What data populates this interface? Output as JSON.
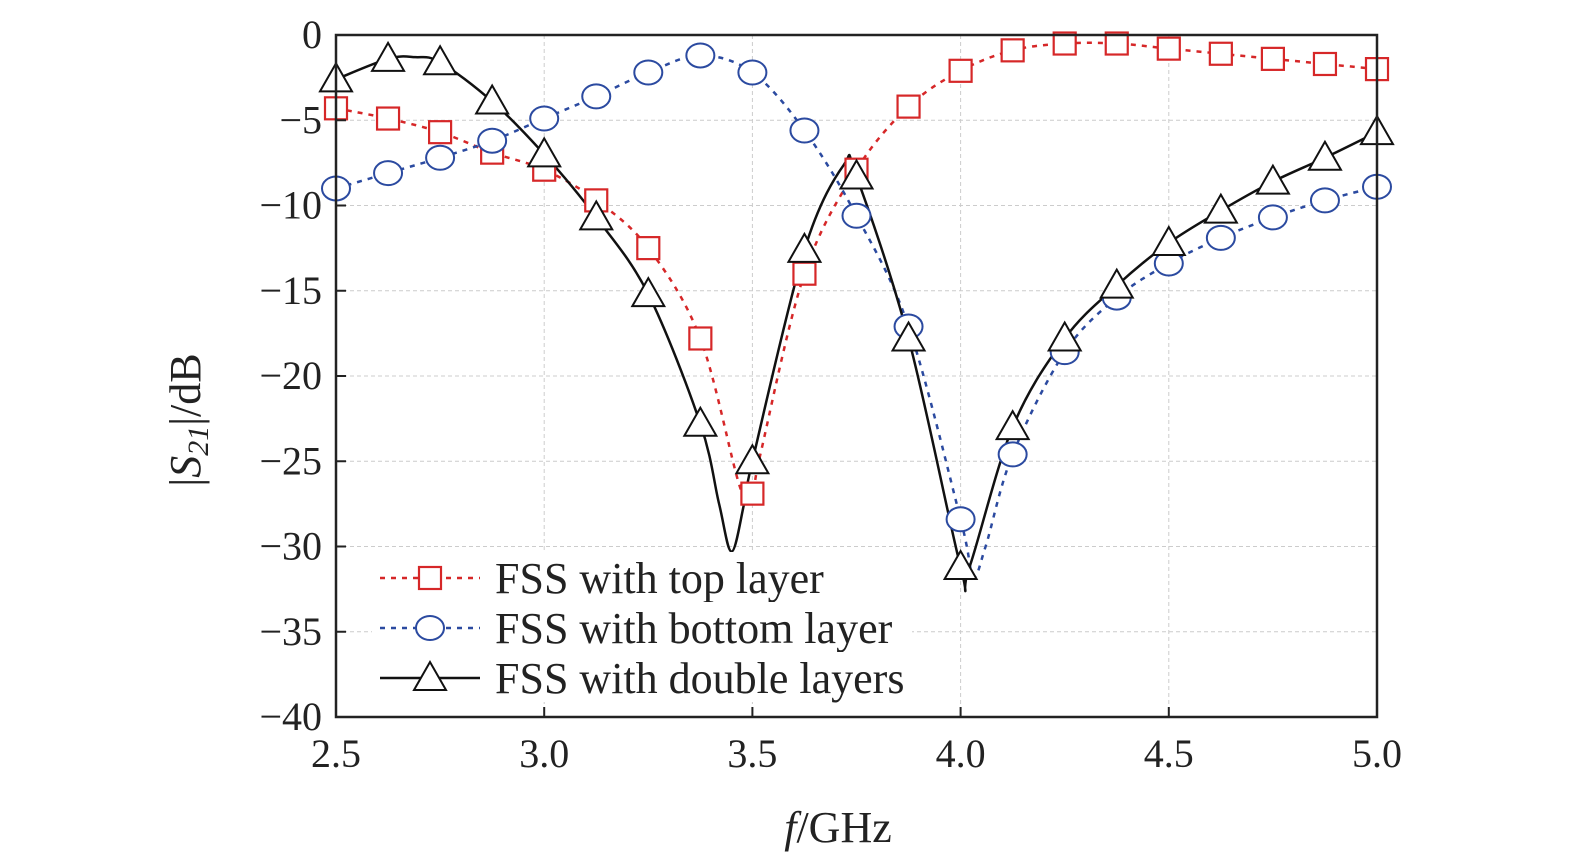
{
  "chart_data": {
    "type": "line",
    "title": "",
    "xlabel": {
      "italic": "f",
      "rest": "/GHz"
    },
    "ylabel": {
      "pre": "|",
      "italic": "S",
      "sub": "21",
      "post": "|/dB"
    },
    "xlim": [
      2.5,
      5.0
    ],
    "ylim": [
      -40,
      0
    ],
    "xticks": [
      "2.5",
      "3.0",
      "3.5",
      "4.0",
      "4.5",
      "5.0"
    ],
    "yticks": [
      "0",
      "−5",
      "−10",
      "−15",
      "−20",
      "−25",
      "−30",
      "−35",
      "−40"
    ],
    "grid": true,
    "legend_position": "bottom-left",
    "x": [
      2.5,
      2.625,
      2.75,
      2.875,
      3.0,
      3.125,
      3.25,
      3.375,
      3.5,
      3.625,
      3.75,
      3.875,
      4.0,
      4.125,
      4.25,
      4.375,
      4.5,
      4.625,
      4.75,
      4.875,
      5.0
    ],
    "series": [
      {
        "name": "FSS with top layer",
        "color": "#d62728",
        "marker": "square",
        "dash": "dotted",
        "values": [
          -4.3,
          -4.9,
          -5.7,
          -6.9,
          -7.9,
          -9.7,
          -12.5,
          -17.8,
          -26.9,
          -14.0,
          -7.9,
          -4.2,
          -2.1,
          -0.9,
          -0.5,
          -0.5,
          -0.8,
          -1.1,
          -1.4,
          -1.7,
          -2.0
        ],
        "curve_extra": [
          [
            3.47,
            -26.5
          ],
          [
            3.52,
            -24.5
          ]
        ]
      },
      {
        "name": "FSS with bottom layer",
        "color": "#2b4aa0",
        "marker": "circle",
        "dash": "dotted",
        "values": [
          -9.0,
          -8.1,
          -7.2,
          -6.2,
          -4.9,
          -3.6,
          -2.2,
          -1.2,
          -2.2,
          -5.6,
          -10.6,
          -17.1,
          -28.4,
          -24.6,
          -18.6,
          -15.4,
          -13.4,
          -11.9,
          -10.7,
          -9.7,
          -8.9
        ],
        "curve_extra": [
          [
            4.03,
            -31.7
          ],
          [
            4.06,
            -30.0
          ]
        ]
      },
      {
        "name": "FSS with double layers",
        "color": "#111111",
        "marker": "triangle",
        "dash": "solid",
        "values": [
          -2.6,
          -1.4,
          -1.6,
          -3.9,
          -7.0,
          -10.7,
          -15.2,
          -22.8,
          -25.0,
          -12.6,
          -8.3,
          -17.8,
          -31.2,
          -23.0,
          -17.8,
          -14.7,
          -12.2,
          -10.3,
          -8.6,
          -7.2,
          -5.7
        ],
        "curve_extra": [
          [
            2.69,
            -1.3
          ],
          [
            3.42,
            -27.5
          ],
          [
            3.45,
            -30.3
          ],
          [
            3.48,
            -27.5
          ],
          [
            3.72,
            -7.6
          ],
          [
            4.02,
            -31.3
          ]
        ]
      }
    ]
  }
}
